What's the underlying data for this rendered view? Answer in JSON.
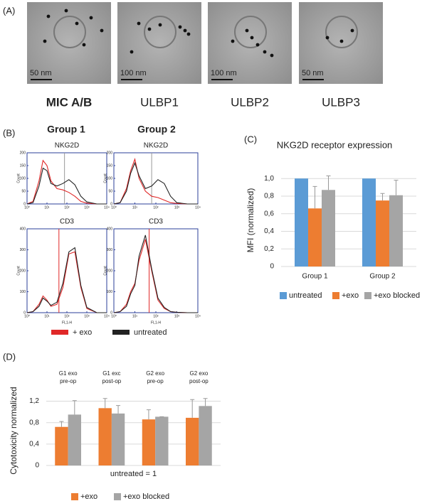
{
  "panel_labels": [
    "(A)",
    "(B)",
    "(C)",
    "(D)"
  ],
  "images": [
    {
      "label": "MIC A/B",
      "scale": "50 nm"
    },
    {
      "label": "ULBP1",
      "scale": "100 nm"
    },
    {
      "label": "ULBP2",
      "scale": "100 nm"
    },
    {
      "label": "ULBP3",
      "scale": "50 nm"
    }
  ],
  "groups": [
    "Group 1",
    "Group 2"
  ],
  "flow_legend": [
    {
      "name": "+ exo",
      "color": "#e02828"
    },
    {
      "name": "untreated",
      "color": "#222222"
    }
  ],
  "chart_data": [
    {
      "type": "line",
      "title": "NKG2D",
      "ylabel": "Count",
      "x": [
        0,
        0.3,
        0.6,
        0.8,
        1.0,
        1.2,
        1.5,
        1.8,
        2.1,
        2.4,
        2.7,
        3.0,
        3.5,
        4
      ],
      "xlim": [
        0,
        4
      ],
      "ylim": [
        0,
        200
      ],
      "yticks": [
        0,
        50,
        100,
        150,
        200
      ],
      "xticks": [
        {
          "value": 0,
          "label": "10⁰"
        },
        {
          "value": 1,
          "label": "10¹"
        },
        {
          "value": 2,
          "label": "10²"
        },
        {
          "value": 3,
          "label": "10³"
        },
        {
          "value": 4,
          "label": "10⁴"
        }
      ],
      "series": [
        {
          "color": "#e02828",
          "values": [
            0,
            10,
            90,
            170,
            150,
            90,
            60,
            55,
            45,
            30,
            10,
            3,
            0,
            0
          ]
        },
        {
          "color": "#222222",
          "values": [
            0,
            5,
            70,
            140,
            130,
            80,
            70,
            80,
            95,
            75,
            30,
            8,
            0,
            0
          ]
        }
      ]
    },
    {
      "type": "line",
      "title": "NKG2D",
      "ylabel": "Count",
      "x": [
        0,
        0.3,
        0.6,
        0.8,
        1.0,
        1.2,
        1.5,
        1.8,
        2.1,
        2.4,
        2.7,
        3.0,
        3.5,
        4
      ],
      "xlim": [
        0,
        4
      ],
      "ylim": [
        0,
        200
      ],
      "yticks": [
        0,
        50,
        100,
        150,
        200
      ],
      "xticks": [
        {
          "value": 0,
          "label": "10⁰"
        },
        {
          "value": 1,
          "label": "10¹"
        },
        {
          "value": 2,
          "label": "10²"
        },
        {
          "value": 3,
          "label": "10³"
        },
        {
          "value": 4,
          "label": "10⁴"
        }
      ],
      "series": [
        {
          "color": "#e02828",
          "values": [
            0,
            5,
            60,
            130,
            175,
            100,
            50,
            30,
            25,
            15,
            5,
            2,
            0,
            0
          ]
        },
        {
          "color": "#222222",
          "values": [
            0,
            5,
            50,
            120,
            160,
            110,
            60,
            70,
            95,
            80,
            30,
            5,
            0,
            0
          ]
        }
      ]
    },
    {
      "type": "line",
      "title": "CD3",
      "ylabel": "Count",
      "xlabel": "FL1-H",
      "x": [
        0,
        0.3,
        0.6,
        0.8,
        1.0,
        1.2,
        1.5,
        1.8,
        2.1,
        2.4,
        2.7,
        3.0,
        3.5,
        4
      ],
      "xlim": [
        0,
        4
      ],
      "ylim": [
        0,
        400
      ],
      "yticks": [
        0,
        100,
        200,
        300,
        400
      ],
      "xticks": [
        {
          "value": 0,
          "label": "10⁰"
        },
        {
          "value": 1,
          "label": "10¹"
        },
        {
          "value": 2,
          "label": "10²"
        },
        {
          "value": 3,
          "label": "10³"
        },
        {
          "value": 4,
          "label": "10⁴"
        }
      ],
      "series": [
        {
          "color": "#e02828",
          "values": [
            0,
            5,
            40,
            80,
            60,
            30,
            40,
            120,
            280,
            290,
            120,
            20,
            0,
            0
          ]
        },
        {
          "color": "#222222",
          "values": [
            0,
            5,
            30,
            70,
            55,
            35,
            50,
            140,
            290,
            310,
            130,
            25,
            0,
            0
          ]
        }
      ]
    },
    {
      "type": "line",
      "title": "CD3",
      "ylabel": "Count",
      "xlabel": "FL1-H",
      "x": [
        0,
        0.3,
        0.6,
        0.8,
        1.0,
        1.2,
        1.5,
        1.8,
        2.1,
        2.4,
        2.7,
        3.0,
        3.5,
        4
      ],
      "xlim": [
        0,
        4
      ],
      "ylim": [
        0,
        400
      ],
      "yticks": [
        0,
        100,
        200,
        300,
        400
      ],
      "xticks": [
        {
          "value": 0,
          "label": "10⁰"
        },
        {
          "value": 1,
          "label": "10¹"
        },
        {
          "value": 2,
          "label": "10²"
        },
        {
          "value": 3,
          "label": "10³"
        },
        {
          "value": 4,
          "label": "10⁴"
        }
      ],
      "series": [
        {
          "color": "#e02828",
          "values": [
            0,
            5,
            40,
            100,
            140,
            250,
            350,
            200,
            60,
            20,
            5,
            2,
            0,
            0
          ]
        },
        {
          "color": "#222222",
          "values": [
            0,
            5,
            30,
            90,
            130,
            270,
            370,
            210,
            70,
            25,
            5,
            2,
            0,
            0
          ]
        }
      ]
    },
    {
      "type": "bar",
      "title": "NKG2D receptor expression",
      "ylabel": "MFI (normalized)",
      "categories": [
        "Group 1",
        "Group 2"
      ],
      "ylim": [
        0,
        1.05
      ],
      "yticks": [
        0,
        {
          "value": 0.2,
          "label": "0,2"
        },
        {
          "value": 0.4,
          "label": "0,4"
        },
        {
          "value": 0.6,
          "label": "0,6"
        },
        {
          "value": 0.8,
          "label": "0,8"
        },
        {
          "value": 1.0,
          "label": "1,0"
        }
      ],
      "grid": true,
      "series": [
        {
          "name": "untreated",
          "color": "#5b9bd5",
          "values": [
            1,
            1
          ]
        },
        {
          "name": "+exo",
          "color": "#ed7d31",
          "values": [
            0.66,
            0.75
          ],
          "errors": [
            0.25,
            0.08
          ]
        },
        {
          "name": "+exo blocked",
          "color": "#a5a5a5",
          "values": [
            0.87,
            0.81
          ],
          "errors": [
            0.16,
            0.17
          ]
        }
      ]
    },
    {
      "type": "bar",
      "ylabel": "Cytotoxicity normalized",
      "note": "untreated = 1",
      "categories": [
        "G1 exo\npre-op",
        "G1 exc\npost-op",
        "G2 exo\npre-op",
        "G2 exo\npost-op"
      ],
      "ylim": [
        0,
        1.3
      ],
      "yticks": [
        0,
        {
          "value": 0.4,
          "label": "0,4"
        },
        {
          "value": 0.8,
          "label": "0,8"
        },
        {
          "value": 1.2,
          "label": "1,2"
        }
      ],
      "grid": true,
      "series": [
        {
          "name": "+exo",
          "color": "#ed7d31",
          "values": [
            0.72,
            1.07,
            0.86,
            0.89
          ],
          "errors": [
            0.1,
            0.18,
            0.18,
            0.34
          ]
        },
        {
          "name": "+exo blocked",
          "color": "#a5a5a5",
          "values": [
            0.95,
            0.97,
            0.91,
            1.11
          ],
          "errors": [
            0.26,
            0.15,
            0,
            0.14
          ]
        }
      ]
    }
  ]
}
